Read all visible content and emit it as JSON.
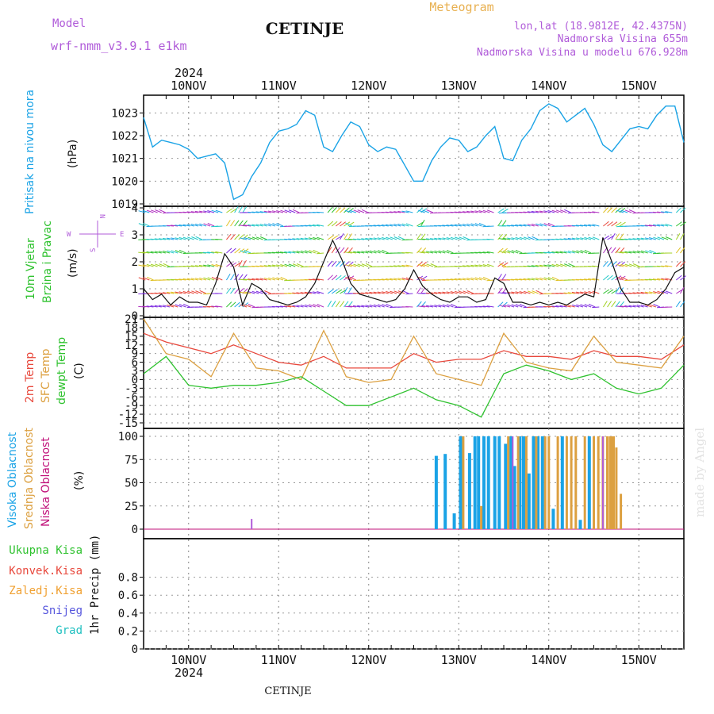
{
  "header": {
    "model_label": "Model",
    "model_name": "wrf-nmm_v3.9.1 e1km",
    "station": "CETINJE",
    "meteogram": "Meteogram",
    "lonlat": "lon,lat (18.9812E, 42.4375N)",
    "altitude": "Nadmorska Visina 655m",
    "altitude_model": "Nadmorska Visina u modelu 676.928m",
    "year_top": "2024",
    "year_bottom": "2024",
    "footer_station": "CETINJE",
    "watermark": "made by Angel"
  },
  "colors": {
    "pressure": "#1aa3e6",
    "temp2m": "#e8483c",
    "sfc": "#dca040",
    "dewpt": "#2fc22f",
    "high_cloud": "#1aa3e6",
    "mid_cloud": "#dca040",
    "low_cloud": "#c0117a",
    "purple": "#b05bd9",
    "orange": "#f0a030"
  },
  "days": [
    "10NOV",
    "11NOV",
    "12NOV",
    "13NOV",
    "14NOV",
    "15NOV"
  ],
  "panels": {
    "pressure": {
      "ylabel1": "Pritisak na nivou mora",
      "unit": "(hPa)"
    },
    "wind": {
      "ylabel1": "10m Vjetar",
      "ylabel2": "Brzina i Pravac",
      "unit": "(m/s)",
      "compass_w": "W",
      "compass_e": "E",
      "compass_n": "N",
      "compass_s": "S"
    },
    "temp": {
      "ylabel1": "2m Temp",
      "ylabel2": "SFC Temp",
      "ylabel3": "dewpt Temp",
      "unit": "(C)"
    },
    "cloud": {
      "ylabel1": "Visoka Oblacnost",
      "ylabel2": "Srednja Oblacnost",
      "ylabel3": "Niska Oblacnost",
      "unit": "(%)"
    },
    "precip": {
      "unit": "1hr Precip (mm)",
      "legend": [
        "Ukupna Kisa",
        "Konvek.Kisa",
        "Zaledj.Kisa",
        "Snijeg",
        "Grad"
      ]
    }
  },
  "chart_data": [
    {
      "type": "line",
      "title": "",
      "ylabel": "Pritisak na nivou mora (hPa)",
      "ylim": [
        1019,
        1023.5
      ],
      "yticks": [
        "1023",
        "1022",
        "1021",
        "1020",
        "1019"
      ],
      "series": [
        {
          "name": "Pritisak na nivou mora",
          "x": [
            9.5,
            9.6,
            9.7,
            9.8,
            9.9,
            10.0,
            10.1,
            10.2,
            10.3,
            10.4,
            10.5,
            10.6,
            10.7,
            10.8,
            10.9,
            11.0,
            11.1,
            11.2,
            11.3,
            11.4,
            11.5,
            11.6,
            11.7,
            11.8,
            11.9,
            12.0,
            12.1,
            12.2,
            12.3,
            12.4,
            12.5,
            12.6,
            12.7,
            12.8,
            12.9,
            13.0,
            13.1,
            13.2,
            13.3,
            13.4,
            13.5,
            13.6,
            13.7,
            13.8,
            13.9,
            14.0,
            14.1,
            14.2,
            14.3,
            14.4,
            14.5,
            14.6,
            14.7,
            14.8,
            14.9,
            15.0,
            15.1,
            15.2,
            15.3,
            15.4,
            15.5
          ],
          "values": [
            1022.8,
            1021.5,
            1021.8,
            1021.7,
            1021.6,
            1021.4,
            1021.0,
            1021.1,
            1021.2,
            1020.8,
            1019.2,
            1019.4,
            1020.2,
            1020.8,
            1021.7,
            1022.2,
            1022.3,
            1022.5,
            1023.1,
            1022.9,
            1021.5,
            1021.3,
            1022.0,
            1022.6,
            1022.4,
            1021.6,
            1021.3,
            1021.5,
            1021.4,
            1020.7,
            1020.0,
            1020.0,
            1020.9,
            1021.5,
            1021.9,
            1021.8,
            1021.3,
            1021.5,
            1022.0,
            1022.4,
            1021.0,
            1020.9,
            1021.8,
            1022.3,
            1023.1,
            1023.4,
            1023.2,
            1022.6,
            1022.9,
            1023.2,
            1022.5,
            1021.6,
            1021.3,
            1021.8,
            1022.3,
            1022.4,
            1022.3,
            1022.9,
            1023.3,
            1023.3,
            1021.7
          ]
        }
      ]
    },
    {
      "type": "line",
      "title": "",
      "ylabel": "10m Vjetar Brzina i Pravac (m/s)",
      "ylim": [
        0,
        4
      ],
      "yticks": [
        "4",
        "3",
        "2",
        "1",
        "0"
      ],
      "series": [
        {
          "name": "10m Vjetar",
          "x": [
            9.5,
            9.6,
            9.7,
            9.8,
            9.9,
            10.0,
            10.1,
            10.2,
            10.3,
            10.4,
            10.5,
            10.6,
            10.7,
            10.8,
            10.9,
            11.0,
            11.1,
            11.2,
            11.3,
            11.4,
            11.5,
            11.6,
            11.7,
            11.8,
            11.9,
            12.0,
            12.1,
            12.2,
            12.3,
            12.4,
            12.5,
            12.6,
            12.7,
            12.8,
            12.9,
            13.0,
            13.1,
            13.2,
            13.3,
            13.4,
            13.5,
            13.6,
            13.7,
            13.8,
            13.9,
            14.0,
            14.1,
            14.2,
            14.3,
            14.4,
            14.5,
            14.6,
            14.7,
            14.8,
            14.9,
            15.0,
            15.1,
            15.2,
            15.3,
            15.4,
            15.5
          ],
          "values": [
            1.0,
            0.6,
            0.8,
            0.4,
            0.7,
            0.5,
            0.5,
            0.4,
            1.2,
            2.3,
            1.8,
            0.4,
            1.2,
            1.0,
            0.6,
            0.5,
            0.4,
            0.5,
            0.7,
            1.2,
            2.0,
            2.8,
            2.1,
            1.2,
            0.8,
            0.7,
            0.6,
            0.5,
            0.6,
            1.0,
            1.7,
            1.1,
            0.8,
            0.6,
            0.5,
            0.7,
            0.7,
            0.5,
            0.6,
            1.4,
            1.2,
            0.5,
            0.5,
            0.4,
            0.5,
            0.4,
            0.5,
            0.4,
            0.6,
            0.8,
            0.7,
            2.9,
            2.0,
            1.0,
            0.5,
            0.5,
            0.4,
            0.6,
            1.0,
            1.6,
            1.8
          ]
        }
      ]
    },
    {
      "type": "line",
      "title": "",
      "ylabel": "Temp (C)",
      "ylim": [
        -15,
        21
      ],
      "yticks": [
        "21",
        "18",
        "15",
        "12",
        "9",
        "6",
        "3",
        "0",
        "-3",
        "-6",
        "-9",
        "-12",
        "-15"
      ],
      "series": [
        {
          "name": "2m Temp",
          "x": [
            9.5,
            9.75,
            10.0,
            10.25,
            10.5,
            10.75,
            11.0,
            11.25,
            11.5,
            11.75,
            12.0,
            12.25,
            12.5,
            12.75,
            13.0,
            13.25,
            13.5,
            13.75,
            14.0,
            14.25,
            14.5,
            14.75,
            15.0,
            15.25,
            15.5
          ],
          "values": [
            16,
            13,
            11,
            9,
            12,
            9,
            6,
            5,
            8,
            4,
            4,
            4,
            9,
            6,
            7,
            7,
            10,
            8,
            8,
            7,
            10,
            8,
            8,
            7,
            12
          ]
        },
        {
          "name": "SFC Temp",
          "x": [
            9.5,
            9.75,
            10.0,
            10.25,
            10.5,
            10.75,
            11.0,
            11.25,
            11.5,
            11.75,
            12.0,
            12.25,
            12.5,
            12.75,
            13.0,
            13.25,
            13.5,
            13.75,
            14.0,
            14.25,
            14.5,
            14.75,
            15.0,
            15.25,
            15.5
          ],
          "values": [
            21,
            9,
            7,
            1,
            16,
            4,
            3,
            0,
            17,
            1,
            -1,
            0,
            15,
            2,
            0,
            -2,
            16,
            6,
            4,
            3,
            15,
            6,
            5,
            4,
            15
          ]
        },
        {
          "name": "dewpt Temp",
          "x": [
            9.5,
            9.75,
            10.0,
            10.25,
            10.5,
            10.75,
            11.0,
            11.25,
            11.5,
            11.75,
            12.0,
            12.25,
            12.5,
            12.75,
            13.0,
            13.25,
            13.5,
            13.75,
            14.0,
            14.25,
            14.5,
            14.75,
            15.0,
            15.25,
            15.5
          ],
          "values": [
            2,
            8,
            -2,
            -3,
            -2,
            -2,
            -1,
            1,
            -4,
            -9,
            -9,
            -6,
            -3,
            -7,
            -9,
            -13,
            2,
            5,
            3,
            0,
            2,
            -3,
            -5,
            -3,
            5
          ]
        }
      ]
    },
    {
      "type": "bar",
      "title": "",
      "ylabel": "Oblacnost (%)",
      "ylim": [
        0,
        100
      ],
      "yticks": [
        "100",
        "75",
        "50",
        "25",
        "0"
      ],
      "series": [
        {
          "name": "Visoka Oblacnost",
          "x": [
            12.75,
            12.85,
            12.95,
            13.02,
            13.12,
            13.18,
            13.22,
            13.28,
            13.33,
            13.4,
            13.45,
            13.52,
            13.58,
            13.62,
            13.68,
            13.72,
            13.78,
            13.83,
            13.88,
            13.93,
            14.05,
            14.15,
            14.35,
            14.45
          ],
          "values": [
            79,
            81,
            17,
            100,
            82,
            100,
            100,
            100,
            100,
            100,
            100,
            92,
            100,
            68,
            100,
            100,
            60,
            100,
            100,
            100,
            22,
            100,
            10,
            100
          ]
        },
        {
          "name": "Srednja Oblacnost",
          "x": [
            13.05,
            13.25,
            13.55,
            13.66,
            13.75,
            13.86,
            13.96,
            14.0,
            14.1,
            14.2,
            14.25,
            14.3,
            14.4,
            14.5,
            14.55,
            14.6,
            14.65,
            14.68,
            14.7,
            14.72,
            14.75,
            14.8
          ],
          "values": [
            100,
            25,
            100,
            100,
            100,
            100,
            100,
            100,
            100,
            100,
            100,
            100,
            100,
            100,
            100,
            100,
            100,
            100,
            100,
            100,
            88,
            38
          ]
        },
        {
          "name": "Niska Oblacnost",
          "x": [
            10.7,
            13.6,
            14.6
          ],
          "values": [
            11,
            100,
            100
          ]
        }
      ]
    },
    {
      "type": "bar",
      "title": "",
      "ylabel": "1hr Precip (mm)",
      "ylim": [
        0,
        1.0
      ],
      "yticks": [
        "0.8",
        "0.6",
        "0.4",
        "0.2",
        "0"
      ],
      "series": [
        {
          "name": "Ukupna Kisa",
          "values": []
        },
        {
          "name": "Konvek.Kisa",
          "values": []
        },
        {
          "name": "Zaledj.Kisa",
          "values": []
        },
        {
          "name": "Snijeg",
          "values": []
        },
        {
          "name": "Grad",
          "values": []
        }
      ]
    }
  ]
}
